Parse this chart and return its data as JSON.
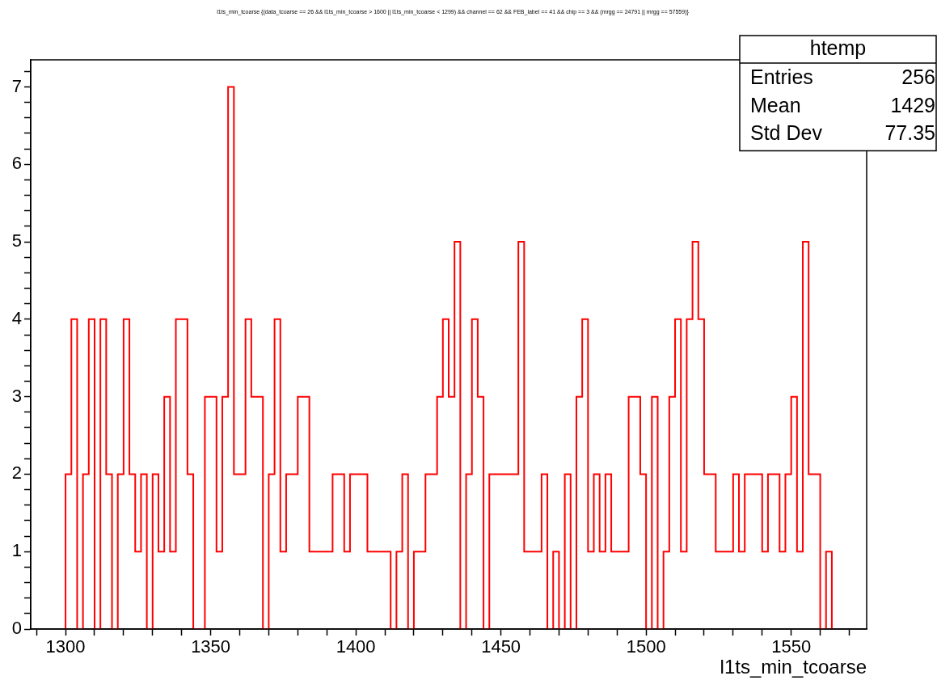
{
  "chart_data": {
    "type": "histogram",
    "title": "l1ts_min_tcoarse {(data_tcoarse == 26 && l1ts_min_tcoarse > 1600 || l1ts_min_tcoarse < 1299) && channel == 62 && FEB_label == 41 && chip == 3 && (mrgg == 24791 || mrgg == 57559)}",
    "xlabel": "l1ts_min_tcoarse",
    "color": "#ff0000",
    "bins": [
      1300,
      1302,
      1304,
      1306,
      1308,
      1310,
      1312,
      1314,
      1316,
      1318,
      1320,
      1322,
      1324,
      1326,
      1328,
      1330,
      1332,
      1334,
      1336,
      1338,
      1340,
      1342,
      1344,
      1346,
      1348,
      1350,
      1352,
      1354,
      1356,
      1358,
      1360,
      1362,
      1364,
      1366,
      1368,
      1370,
      1372,
      1374,
      1376,
      1378,
      1380,
      1382,
      1384,
      1386,
      1388,
      1390,
      1392,
      1394,
      1396,
      1398,
      1400,
      1402,
      1404,
      1406,
      1408,
      1410,
      1412,
      1414,
      1416,
      1418,
      1420,
      1422,
      1424,
      1426,
      1428,
      1430,
      1432,
      1434,
      1436,
      1438,
      1440,
      1442,
      1444,
      1446,
      1448,
      1450,
      1452,
      1454,
      1456,
      1458,
      1460,
      1462,
      1464,
      1466,
      1468,
      1470,
      1472,
      1474,
      1476,
      1478,
      1480,
      1482,
      1484,
      1486,
      1488,
      1490,
      1492,
      1494,
      1496,
      1498,
      1500,
      1502,
      1504,
      1506,
      1508,
      1510,
      1512,
      1514,
      1516,
      1518,
      1520,
      1522,
      1524,
      1526,
      1528,
      1530,
      1532,
      1534,
      1536,
      1538,
      1540,
      1542,
      1544,
      1546,
      1548,
      1550,
      1552,
      1554,
      1556,
      1558,
      1560,
      1562,
      1564
    ],
    "values": [
      2,
      4,
      0,
      2,
      4,
      0,
      4,
      2,
      0,
      2,
      4,
      2,
      1,
      2,
      0,
      2,
      1,
      3,
      1,
      4,
      4,
      2,
      0,
      0,
      3,
      3,
      1,
      3,
      7,
      2,
      2,
      4,
      3,
      3,
      0,
      2,
      4,
      1,
      2,
      2,
      3,
      3,
      1,
      1,
      1,
      1,
      2,
      2,
      1,
      2,
      2,
      2,
      1,
      1,
      1,
      1,
      0,
      1,
      2,
      0,
      1,
      1,
      2,
      2,
      3,
      4,
      3,
      5,
      0,
      2,
      4,
      3,
      0,
      2,
      2,
      2,
      2,
      2,
      5,
      1,
      1,
      1,
      2,
      0,
      1,
      0,
      2,
      0,
      3,
      4,
      1,
      2,
      1,
      2,
      1,
      1,
      1,
      3,
      3,
      2,
      0,
      3,
      0,
      1,
      3,
      4,
      1,
      4,
      5,
      4,
      2,
      2,
      1,
      1,
      1,
      2,
      1,
      2,
      2,
      2,
      1,
      2,
      2,
      1,
      2,
      3,
      1,
      5,
      2,
      2,
      0,
      1
    ],
    "xlim": [
      1288,
      1576
    ],
    "ylim": [
      0,
      7.35
    ],
    "xticks": [
      {
        "value": 1290,
        "label": null
      },
      1300,
      {
        "value": 1310,
        "label": null
      },
      {
        "value": 1320,
        "label": null
      },
      {
        "value": 1330,
        "label": null
      },
      {
        "value": 1340,
        "label": null
      },
      1350,
      {
        "value": 1360,
        "label": null
      },
      {
        "value": 1370,
        "label": null
      },
      {
        "value": 1380,
        "label": null
      },
      {
        "value": 1390,
        "label": null
      },
      1400,
      {
        "value": 1410,
        "label": null
      },
      {
        "value": 1420,
        "label": null
      },
      {
        "value": 1430,
        "label": null
      },
      {
        "value": 1440,
        "label": null
      },
      1450,
      {
        "value": 1460,
        "label": null
      },
      {
        "value": 1470,
        "label": null
      },
      {
        "value": 1480,
        "label": null
      },
      {
        "value": 1490,
        "label": null
      },
      1500,
      {
        "value": 1510,
        "label": null
      },
      {
        "value": 1520,
        "label": null
      },
      {
        "value": 1530,
        "label": null
      },
      {
        "value": 1540,
        "label": null
      },
      1550,
      {
        "value": 1560,
        "label": null
      },
      {
        "value": 1570,
        "label": null
      }
    ],
    "yticks": [
      0,
      {
        "value": 0.2,
        "label": null
      },
      {
        "value": 0.4,
        "label": null
      },
      {
        "value": 0.6,
        "label": null
      },
      {
        "value": 0.8,
        "label": null
      },
      1,
      {
        "value": 1.2,
        "label": null
      },
      {
        "value": 1.4,
        "label": null
      },
      {
        "value": 1.6,
        "label": null
      },
      {
        "value": 1.8,
        "label": null
      },
      2,
      {
        "value": 2.2,
        "label": null
      },
      {
        "value": 2.4,
        "label": null
      },
      {
        "value": 2.6,
        "label": null
      },
      {
        "value": 2.8,
        "label": null
      },
      3,
      {
        "value": 3.2,
        "label": null
      },
      {
        "value": 3.4,
        "label": null
      },
      {
        "value": 3.6,
        "label": null
      },
      {
        "value": 3.8,
        "label": null
      },
      4,
      {
        "value": 4.2,
        "label": null
      },
      {
        "value": 4.4,
        "label": null
      },
      {
        "value": 4.6,
        "label": null
      },
      {
        "value": 4.8,
        "label": null
      },
      5,
      {
        "value": 5.2,
        "label": null
      },
      {
        "value": 5.4,
        "label": null
      },
      {
        "value": 5.6,
        "label": null
      },
      {
        "value": 5.8,
        "label": null
      },
      6,
      {
        "value": 6.2,
        "label": null
      },
      {
        "value": 6.4,
        "label": null
      },
      {
        "value": 6.6,
        "label": null
      },
      {
        "value": 6.8,
        "label": null
      },
      7,
      {
        "value": 7.2,
        "label": null
      }
    ],
    "annotations": [
      "htemp",
      "Entries",
      "256",
      "Mean",
      "1429",
      "Std Dev",
      "77.35"
    ]
  }
}
